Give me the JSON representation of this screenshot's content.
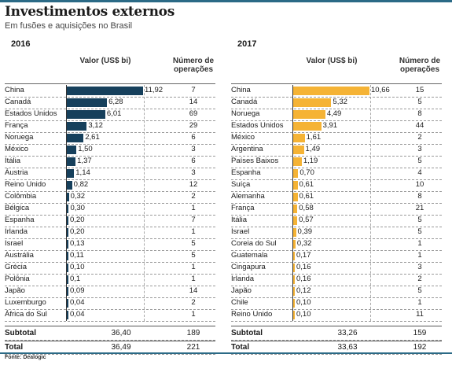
{
  "title": "Investimentos externos",
  "subtitle": "Em fusões e aquisições no Brasil",
  "source": "Fonte: Dealogic",
  "colors": {
    "bar_2016": "#16405c",
    "bar_2017": "#f5b335",
    "accent": "#2b6a86"
  },
  "chart_data": [
    {
      "type": "bar",
      "year": "2016",
      "value_header": "Valor (US$ bi)",
      "ops_header": "Número de operações",
      "rows": [
        {
          "country": "China",
          "value": 11.92,
          "label": "11,92",
          "ops": "7"
        },
        {
          "country": "Canadá",
          "value": 6.28,
          "label": "6,28",
          "ops": "14"
        },
        {
          "country": "Estados Unidos",
          "value": 6.01,
          "label": "6,01",
          "ops": "69"
        },
        {
          "country": "França",
          "value": 3.12,
          "label": "3,12",
          "ops": "29"
        },
        {
          "country": "Noruega",
          "value": 2.61,
          "label": "2,61",
          "ops": "6"
        },
        {
          "country": "México",
          "value": 1.5,
          "label": "1,50",
          "ops": "3"
        },
        {
          "country": "Itália",
          "value": 1.37,
          "label": "1,37",
          "ops": "6"
        },
        {
          "country": "Áustria",
          "value": 1.14,
          "label": "1,14",
          "ops": "3"
        },
        {
          "country": "Reino Unido",
          "value": 0.82,
          "label": "0,82",
          "ops": "12"
        },
        {
          "country": "Colômbia",
          "value": 0.32,
          "label": "0,32",
          "ops": "2"
        },
        {
          "country": "Bélgica",
          "value": 0.3,
          "label": "0,30",
          "ops": "1"
        },
        {
          "country": "Espanha",
          "value": 0.2,
          "label": "0,20",
          "ops": "7"
        },
        {
          "country": "Irlanda",
          "value": 0.2,
          "label": "0,20",
          "ops": "1"
        },
        {
          "country": "Israel",
          "value": 0.13,
          "label": "0,13",
          "ops": "5"
        },
        {
          "country": "Austrália",
          "value": 0.11,
          "label": "0,11",
          "ops": "5"
        },
        {
          "country": "Grécia",
          "value": 0.1,
          "label": "0,10",
          "ops": "1"
        },
        {
          "country": "Polônia",
          "value": 0.1,
          "label": "0,1",
          "ops": "1"
        },
        {
          "country": "Japão",
          "value": 0.09,
          "label": "0,09",
          "ops": "14"
        },
        {
          "country": "Luxemburgo",
          "value": 0.04,
          "label": "0,04",
          "ops": "2"
        },
        {
          "country": "África do Sul",
          "value": 0.04,
          "label": "0,04",
          "ops": "1"
        }
      ],
      "subtotal": {
        "label": "Subtotal",
        "value": "36,40",
        "ops": "189"
      },
      "total": {
        "label": "Total",
        "value": "36,49",
        "ops": "221"
      }
    },
    {
      "type": "bar",
      "year": "2017",
      "value_header": "Valor (US$ bi)",
      "ops_header": "Número de operações",
      "rows": [
        {
          "country": "China",
          "value": 10.66,
          "label": "10,66",
          "ops": "15"
        },
        {
          "country": "Canadá",
          "value": 5.32,
          "label": "5,32",
          "ops": "5"
        },
        {
          "country": "Noruega",
          "value": 4.49,
          "label": "4,49",
          "ops": "8"
        },
        {
          "country": "Estados Unidos",
          "value": 3.91,
          "label": "3,91",
          "ops": "44"
        },
        {
          "country": "México",
          "value": 1.61,
          "label": "1,61",
          "ops": "2"
        },
        {
          "country": "Argentina",
          "value": 1.49,
          "label": "1,49",
          "ops": "3"
        },
        {
          "country": "Países Baixos",
          "value": 1.19,
          "label": "1,19",
          "ops": "5"
        },
        {
          "country": "Espanha",
          "value": 0.7,
          "label": "0,70",
          "ops": "4"
        },
        {
          "country": "Suíça",
          "value": 0.61,
          "label": "0,61",
          "ops": "10"
        },
        {
          "country": "Alemanha",
          "value": 0.61,
          "label": "0,61",
          "ops": "8"
        },
        {
          "country": "França",
          "value": 0.58,
          "label": "0,58",
          "ops": "21"
        },
        {
          "country": "Itália",
          "value": 0.57,
          "label": "0,57",
          "ops": "5"
        },
        {
          "country": "Israel",
          "value": 0.39,
          "label": "0,39",
          "ops": "5"
        },
        {
          "country": "Coreia do Sul",
          "value": 0.32,
          "label": "0,32",
          "ops": "1"
        },
        {
          "country": "Guatemala",
          "value": 0.17,
          "label": "0,17",
          "ops": "1"
        },
        {
          "country": "Cingapura",
          "value": 0.16,
          "label": "0,16",
          "ops": "3"
        },
        {
          "country": "Irlanda",
          "value": 0.16,
          "label": "0,16",
          "ops": "2"
        },
        {
          "country": "Japão",
          "value": 0.12,
          "label": "0,12",
          "ops": "5"
        },
        {
          "country": "Chile",
          "value": 0.1,
          "label": "0,10",
          "ops": "1"
        },
        {
          "country": "Reino Unido",
          "value": 0.1,
          "label": "0,10",
          "ops": "11"
        }
      ],
      "subtotal": {
        "label": "Subtotal",
        "value": "33,26",
        "ops": "159"
      },
      "total": {
        "label": "Total",
        "value": "33,63",
        "ops": "192"
      }
    }
  ]
}
